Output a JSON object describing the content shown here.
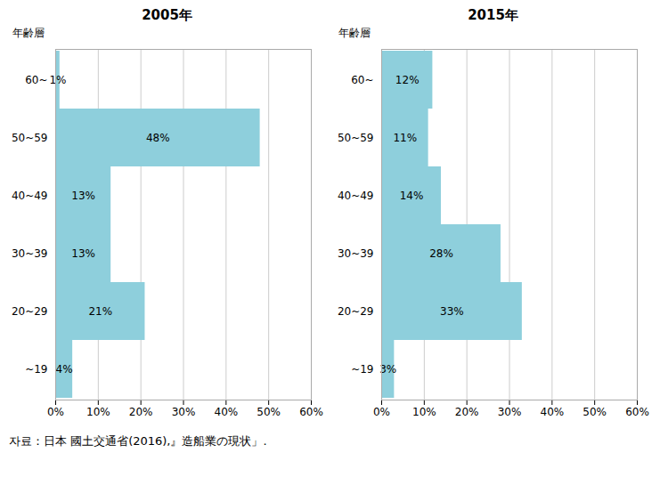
{
  "chart_data": [
    {
      "type": "bar",
      "orientation": "horizontal",
      "title": "2005年",
      "y_label": "年齢層",
      "categories": [
        "60~",
        "50~59",
        "40~49",
        "30~39",
        "20~29",
        "~19"
      ],
      "values": [
        1,
        48,
        13,
        13,
        21,
        4
      ],
      "value_labels": [
        "1%",
        "48%",
        "13%",
        "13%",
        "21%",
        "4%"
      ],
      "data_labels": true,
      "color": "#8ECFDC",
      "xlim": [
        0,
        60
      ],
      "xticks": [
        {
          "value": 0,
          "label": "0%"
        },
        {
          "value": 10,
          "label": "10%"
        },
        {
          "value": 20,
          "label": "20%"
        },
        {
          "value": 30,
          "label": "30%"
        },
        {
          "value": 40,
          "label": "40%"
        },
        {
          "value": 50,
          "label": "50%"
        },
        {
          "value": 60,
          "label": "60%"
        }
      ],
      "grid": true
    },
    {
      "type": "bar",
      "orientation": "horizontal",
      "title": "2015年",
      "y_label": "年齢層",
      "categories": [
        "60~",
        "50~59",
        "40~49",
        "30~39",
        "20~29",
        "~19"
      ],
      "values": [
        12,
        11,
        14,
        28,
        33,
        3
      ],
      "value_labels": [
        "12%",
        "11%",
        "14%",
        "28%",
        "33%",
        "3%"
      ],
      "data_labels": true,
      "color": "#8ECFDC",
      "xlim": [
        0,
        60
      ],
      "xticks": [
        {
          "value": 0,
          "label": "0%"
        },
        {
          "value": 10,
          "label": "10%"
        },
        {
          "value": 20,
          "label": "20%"
        },
        {
          "value": 30,
          "label": "30%"
        },
        {
          "value": 40,
          "label": "40%"
        },
        {
          "value": 50,
          "label": "50%"
        },
        {
          "value": 60,
          "label": "60%"
        }
      ],
      "grid": true
    }
  ],
  "caption": "자료：日本 國土交通省(2016),』造船業の現状」."
}
